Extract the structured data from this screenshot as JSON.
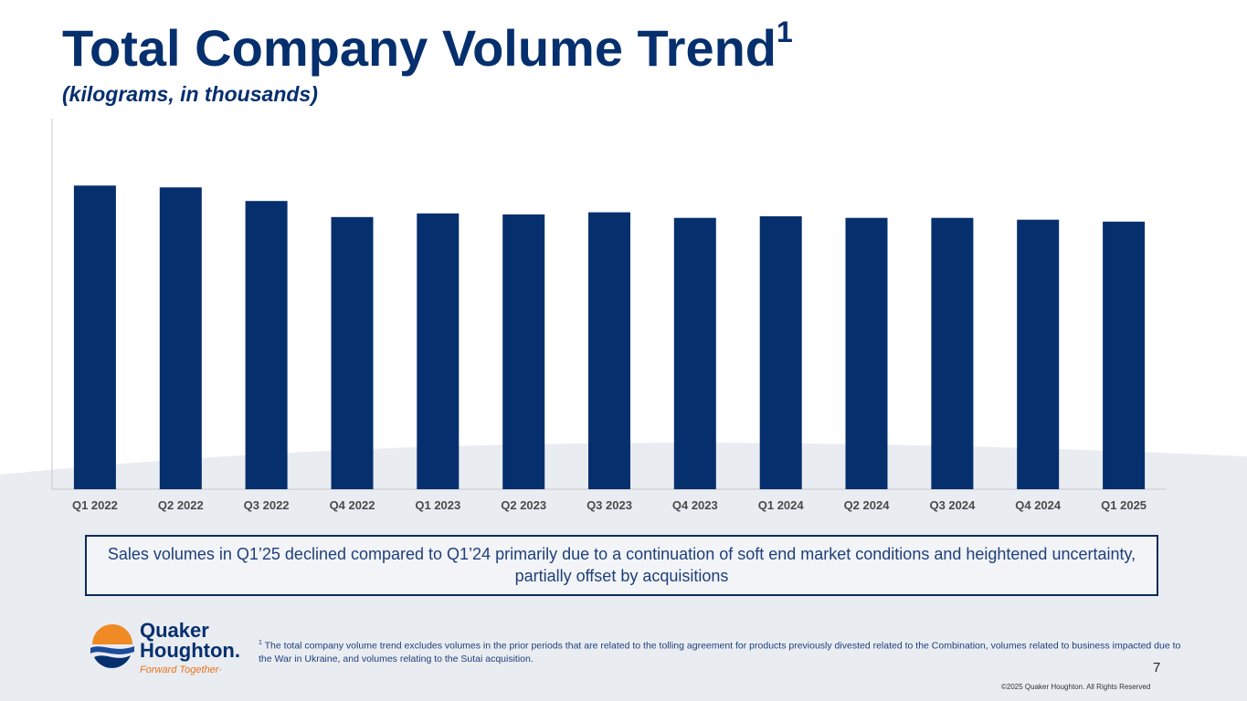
{
  "title": "Total Company Volume Trend",
  "title_superscript": "1",
  "subtitle": "(kilograms, in thousands)",
  "chart_data": {
    "type": "bar",
    "title": "Total Company Volume Trend",
    "subtitle": "(kilograms, in thousands)",
    "categories": [
      "Q1 2022",
      "Q2 2022",
      "Q3 2022",
      "Q4 2022",
      "Q1 2023",
      "Q2 2023",
      "Q3 2023",
      "Q4 2023",
      "Q1 2024",
      "Q2 2024",
      "Q3 2024",
      "Q4 2024",
      "Q1 2025"
    ],
    "values": [
      147.5,
      146.6,
      140.0,
      132.2,
      134.0,
      133.5,
      134.5,
      131.8,
      132.6,
      131.8,
      131.8,
      130.9,
      130.0
    ],
    "ylim": [
      0,
      180
    ],
    "xlabel": "",
    "ylabel": "",
    "grid": false,
    "color": "#062f6e"
  },
  "callout": {
    "text": "Sales volumes in Q1’25 declined compared to Q1’24 primarily due to a continuation of soft end market conditions and heightened uncertainty, partially offset by acquisitions"
  },
  "logo": {
    "line1": "Quaker",
    "line2": "Houghton.",
    "tagline": "Forward Together·"
  },
  "footnote": {
    "marker": "1",
    "text": "The total company volume trend excludes volumes in the prior periods that are related to the tolling agreement for products previously divested related to the Combination, volumes related to business impacted due to the War in Ukraine, and volumes relating to the Sutai acquisition."
  },
  "page_number": "7",
  "copyright": "©2025 Quaker Houghton. All Rights Reserved",
  "colors": {
    "brand_navy": "#062f6e",
    "brand_orange": "#f08a24",
    "background_wave": "#e9ecf1"
  }
}
